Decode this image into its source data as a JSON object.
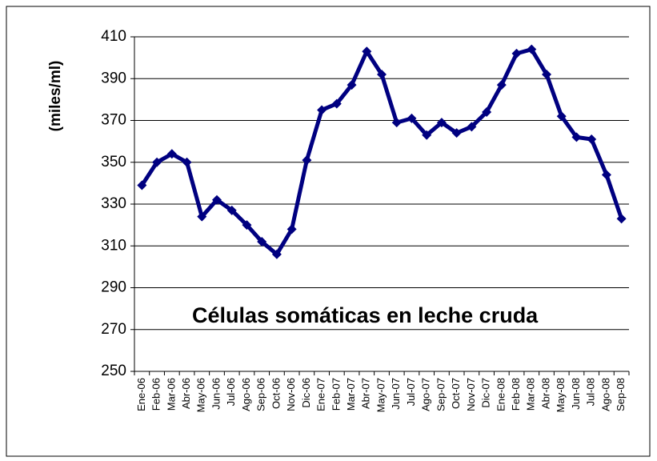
{
  "chart_data": {
    "type": "line",
    "title": "Células somáticas en leche cruda",
    "y_label": "(miles/ml)",
    "categories": [
      "Ene-06",
      "Feb-06",
      "Mar-06",
      "Abr-06",
      "May-06",
      "Jun-06",
      "Jul-06",
      "Ago-06",
      "Sep-06",
      "Oct-06",
      "Nov-06",
      "Dic-06",
      "Ene-07",
      "Feb-07",
      "Mar-07",
      "Abr-07",
      "May-07",
      "Jun-07",
      "Jul-07",
      "Ago-07",
      "Sep-07",
      "Oct-07",
      "Nov-07",
      "Dic-07",
      "Ene-08",
      "Feb-08",
      "Mar-08",
      "Abr-08",
      "May-08",
      "Jun-08",
      "Jul-08",
      "Ago-08",
      "Sep-08"
    ],
    "values": [
      339,
      350,
      354,
      350,
      324,
      332,
      327,
      320,
      312,
      306,
      318,
      351,
      375,
      378,
      387,
      403,
      392,
      369,
      371,
      363,
      369,
      364,
      367,
      374,
      387,
      402,
      404,
      392,
      372,
      362,
      361,
      344,
      323
    ],
    "color": "#000080",
    "ylim": [
      250,
      410
    ],
    "yticks": [
      250,
      270,
      290,
      310,
      330,
      350,
      370,
      390,
      410
    ],
    "grid": true
  }
}
